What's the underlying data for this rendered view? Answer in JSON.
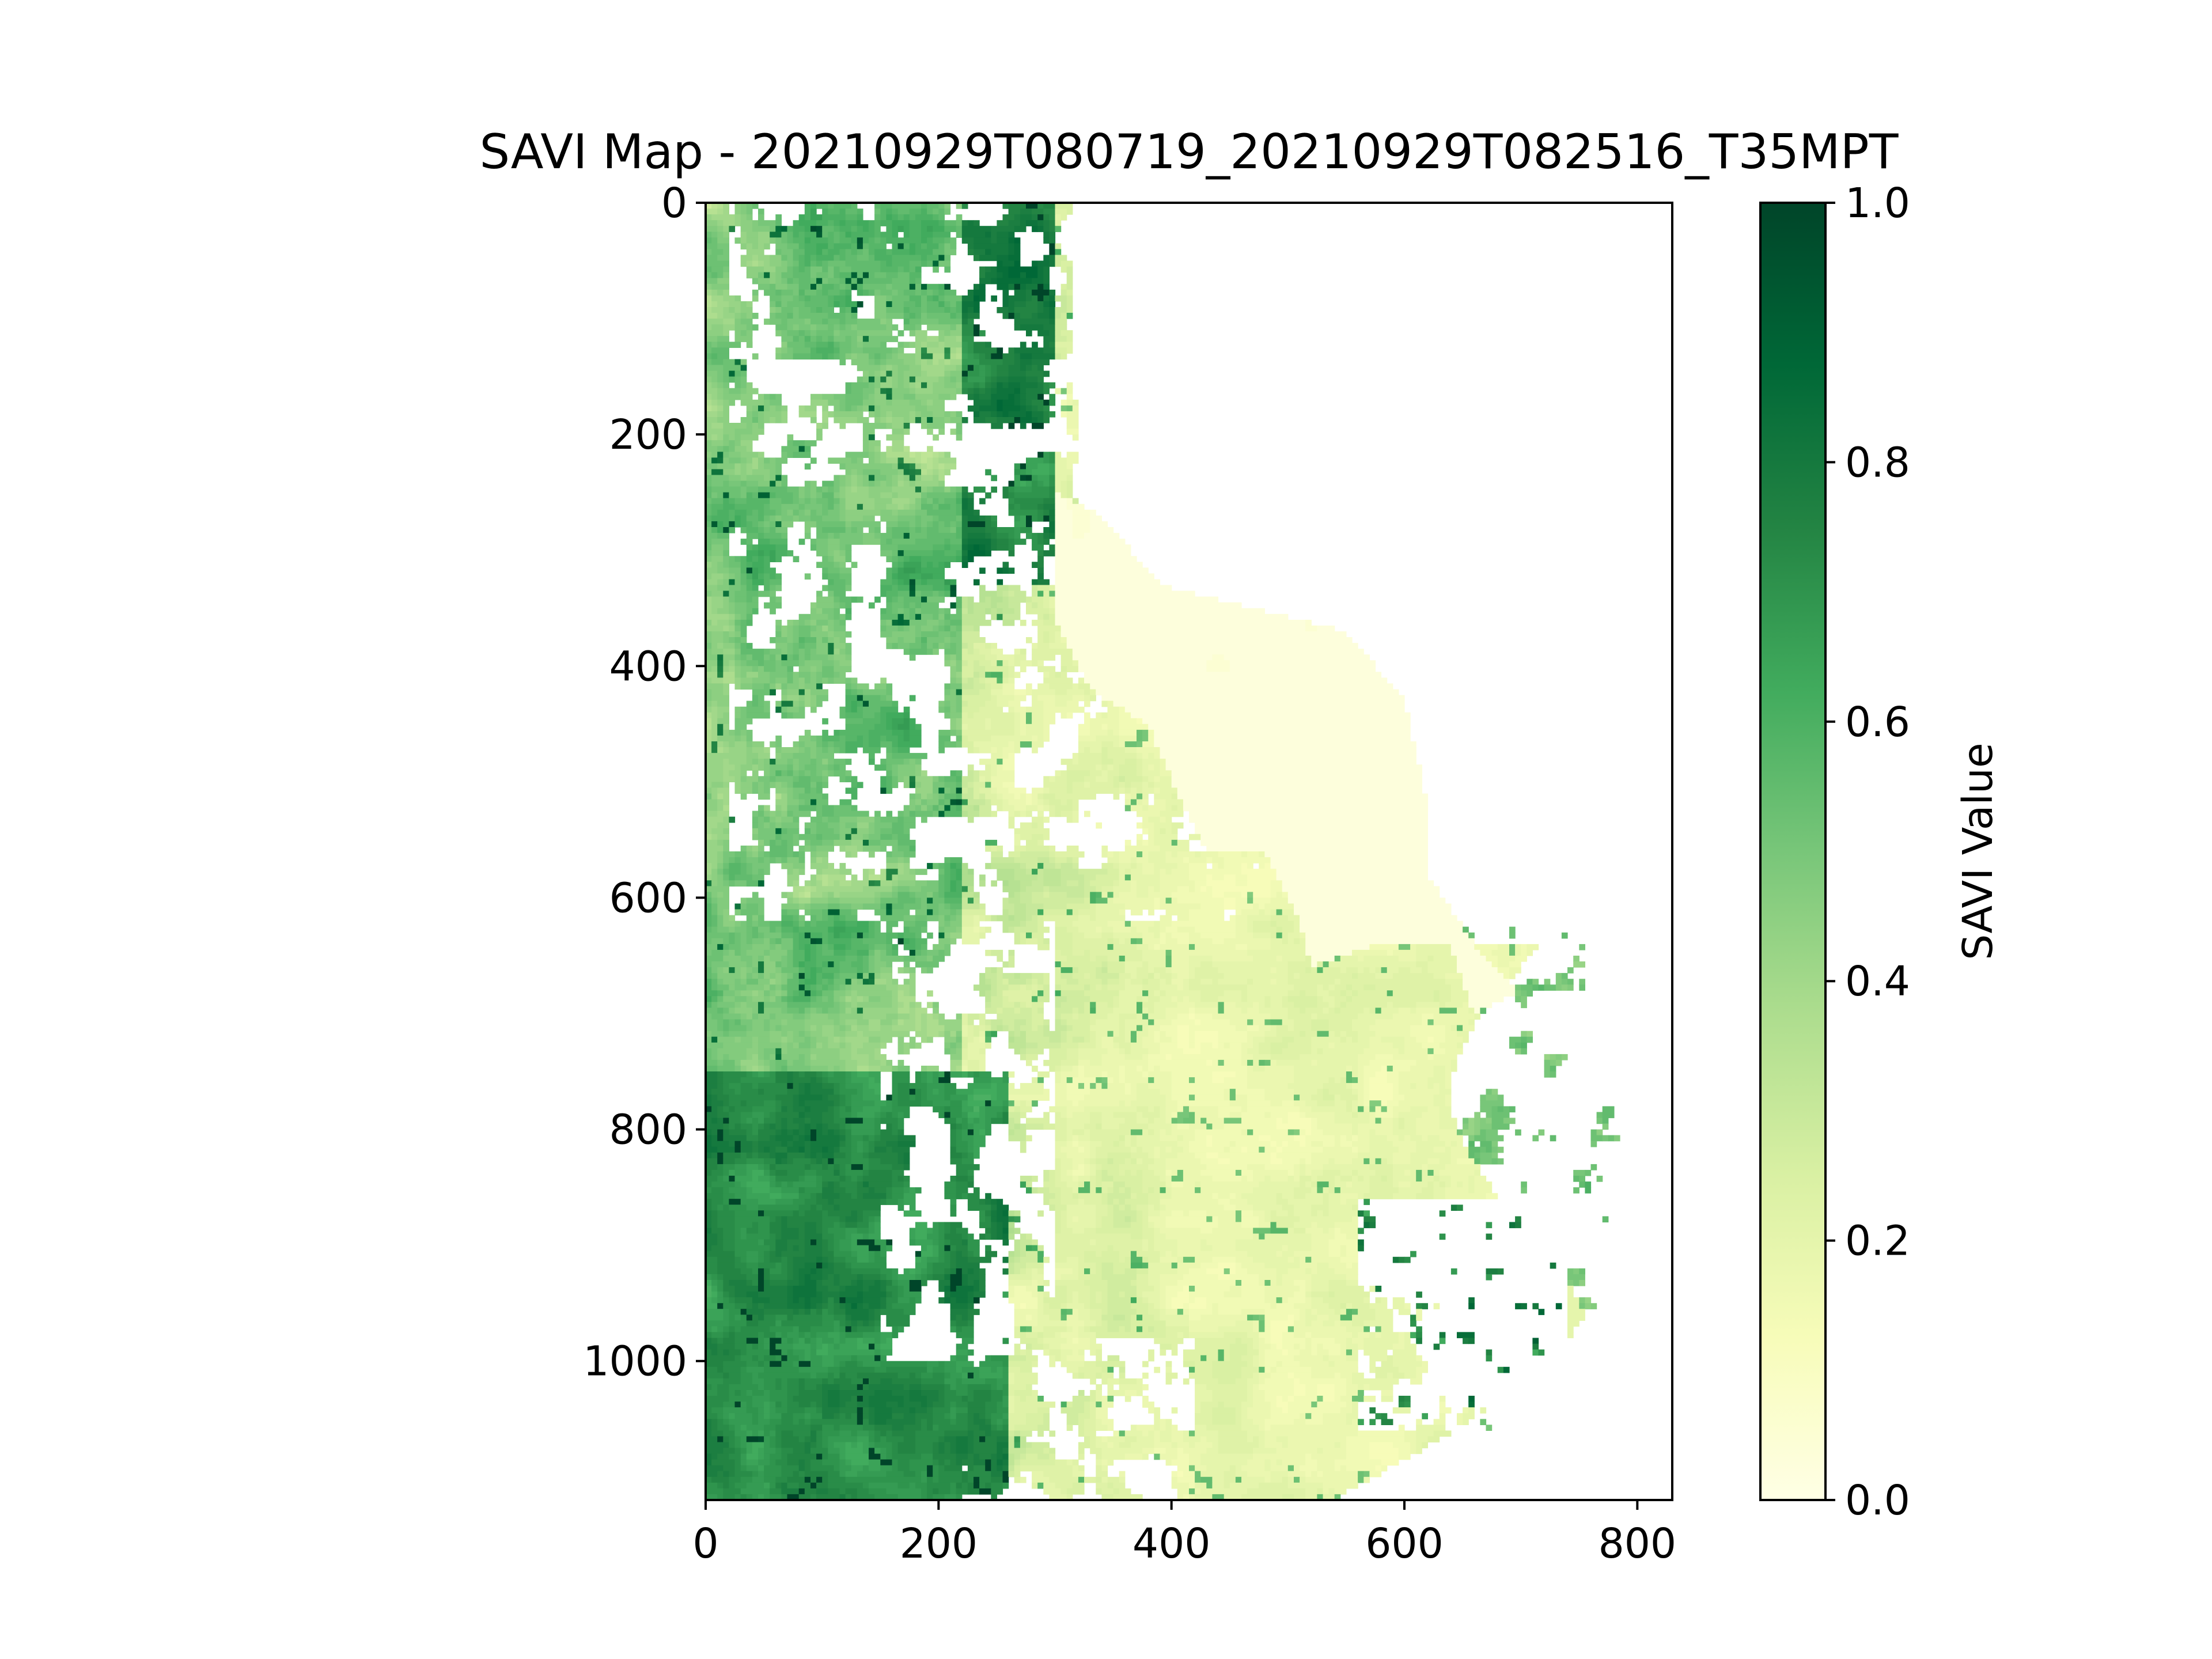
{
  "chart_data": {
    "type": "heatmap",
    "title": "SAVI Map - 20210929T080719_20210929T082516_T35MPT",
    "xlabel": "",
    "ylabel": "",
    "xlim": [
      0,
      830
    ],
    "ylim": [
      1120,
      0
    ],
    "x_ticks": [
      0,
      200,
      400,
      600,
      800
    ],
    "y_ticks": [
      0,
      200,
      400,
      600,
      800,
      1000
    ],
    "x_tick_labels": [
      "0",
      "200",
      "400",
      "600",
      "800"
    ],
    "y_tick_labels": [
      "0",
      "200",
      "400",
      "600",
      "800",
      "1000"
    ],
    "grid": false,
    "colormap": "YlGn",
    "colormap_stops": [
      "#ffffe5",
      "#f7fcb9",
      "#d9f0a3",
      "#addd8e",
      "#78c679",
      "#41ab5d",
      "#238443",
      "#006837",
      "#004529"
    ],
    "colorbar": {
      "label": "SAVI Value",
      "range": [
        0.0,
        1.0
      ],
      "ticks": [
        0.0,
        0.2,
        0.4,
        0.6,
        0.8,
        1.0
      ],
      "tick_labels": [
        "0.0",
        "0.2",
        "0.4",
        "0.6",
        "0.8",
        "1.0"
      ]
    },
    "regions": [
      {
        "description": "dense vegetation, west and south-west",
        "savi": 0.75
      },
      {
        "description": "mixed vegetation, north-west",
        "savi": 0.45
      },
      {
        "description": "sparse vegetation, central and south",
        "savi": 0.2
      },
      {
        "description": "water body / near-zero, east-central",
        "savi": 0.02
      },
      {
        "description": "no data (white), east and scattered gaps",
        "savi": null
      }
    ]
  }
}
